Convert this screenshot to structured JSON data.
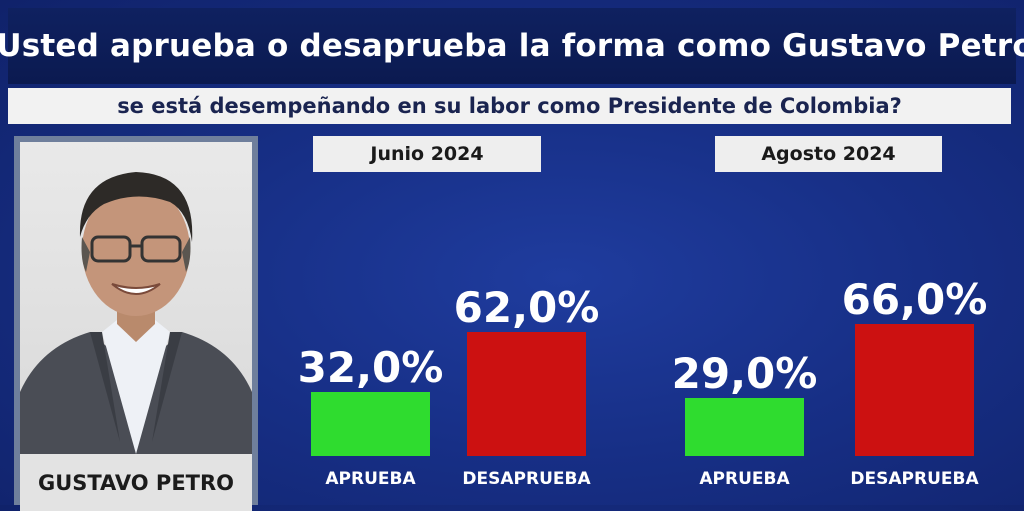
{
  "title": "¿Usted aprueba o desaprueba la forma como Gustavo Petro,",
  "subtitle": "se está desempeñando en su labor como Presidente de Colombia?",
  "person": {
    "name": "GUSTAVO PETRO"
  },
  "colors": {
    "aprueba": "#2fdc2f",
    "desaprueba": "#cc1111"
  },
  "chart_data": [
    {
      "type": "bar",
      "title": "Junio 2024",
      "categories": [
        "APRUEBA",
        "DESAPRUEBA"
      ],
      "values": [
        32.0,
        62.0
      ],
      "value_labels": [
        "32,0%",
        "62,0%"
      ],
      "ylim": [
        0,
        100
      ]
    },
    {
      "type": "bar",
      "title": "Agosto 2024",
      "categories": [
        "APRUEBA",
        "DESAPRUEBA"
      ],
      "values": [
        29.0,
        66.0
      ],
      "value_labels": [
        "29,0%",
        "66,0%"
      ],
      "ylim": [
        0,
        100
      ]
    }
  ]
}
